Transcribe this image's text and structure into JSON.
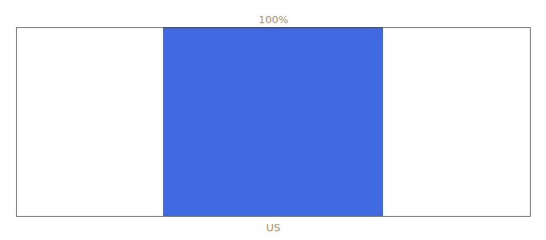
{
  "chart_data": {
    "type": "bar",
    "categories": [
      "US"
    ],
    "values": [
      100
    ],
    "value_labels": [
      "100%"
    ],
    "data_labels": true,
    "color": "#4169e1",
    "ylim": [
      0,
      100
    ],
    "tick_labels": "x"
  }
}
